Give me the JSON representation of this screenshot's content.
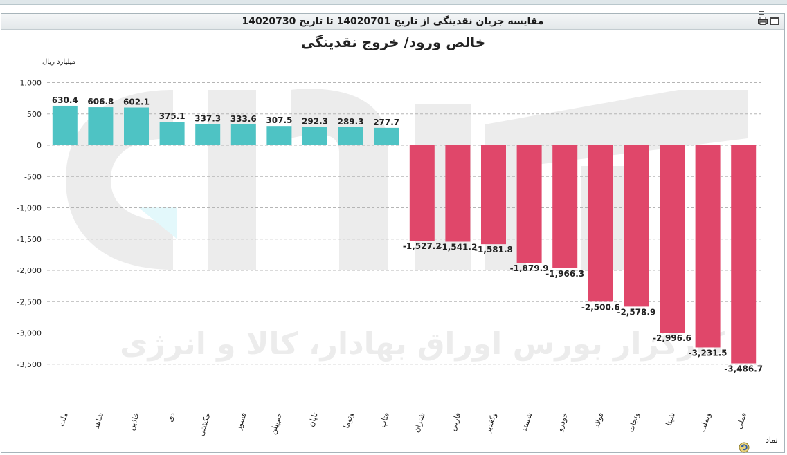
{
  "window": {
    "title": "مقایسه جریان نقدینگی از تاریخ 14020701 تا تاریخ 14020730"
  },
  "colors": {
    "positive": "#4ec3c4",
    "negative": "#e0476a",
    "grid": "#b5b5b5",
    "watermark": "#ececec"
  },
  "chart_data": {
    "type": "bar",
    "title": "خالص ورود/ خروج نقدینگی",
    "ylabel": "میلیارد ریال",
    "xlabel": "نماد",
    "ylim": [
      -3800,
      1100
    ],
    "yticks": [
      1000,
      500,
      0,
      -500,
      -1000,
      -1500,
      -2000,
      -2500,
      -3000,
      -3500
    ],
    "ytick_labels": [
      "1,000",
      "500",
      "0",
      "-500",
      "-1,000",
      "-1,500",
      "-2,000",
      "-2,500",
      "-3,000",
      "-3,500"
    ],
    "grid": true,
    "categories": [
      "ملت",
      "شاهد",
      "خاذین",
      "دی",
      "حکشتی",
      "فسوز",
      "جم‌پیلن",
      "تاپان",
      "وتوما",
      "فتاپ",
      "شتران",
      "فارس",
      "وکغدیر",
      "شستد",
      "خودرو",
      "فولاد",
      "ونجات",
      "شپنا",
      "وبملت",
      "فملی"
    ],
    "values": [
      630.4,
      606.8,
      602.1,
      375.1,
      337.3,
      333.6,
      307.5,
      292.3,
      289.3,
      277.7,
      -1527.2,
      -1541.2,
      -1581.8,
      -1879.9,
      -1966.3,
      -2500.6,
      -2578.9,
      -2996.6,
      -3231.5,
      -3486.7
    ],
    "labels": [
      "630.4",
      "606.8",
      "602.1",
      "375.1",
      "337.3",
      "333.6",
      "307.5",
      "292.3",
      "289.3",
      "277.7",
      "-1,527.2",
      "-1,541.2",
      "-1,581.8",
      "-1,879.9",
      "-1,966.3",
      "-2,500.6",
      "-2,578.9",
      "-2,996.6",
      "-3,231.5",
      "-3,486.7"
    ]
  },
  "watermark": {
    "text": "کارگزار بورس اوراق بهادار، کالا و انرژی"
  },
  "footer": {
    "icon": "refresh-icon"
  }
}
